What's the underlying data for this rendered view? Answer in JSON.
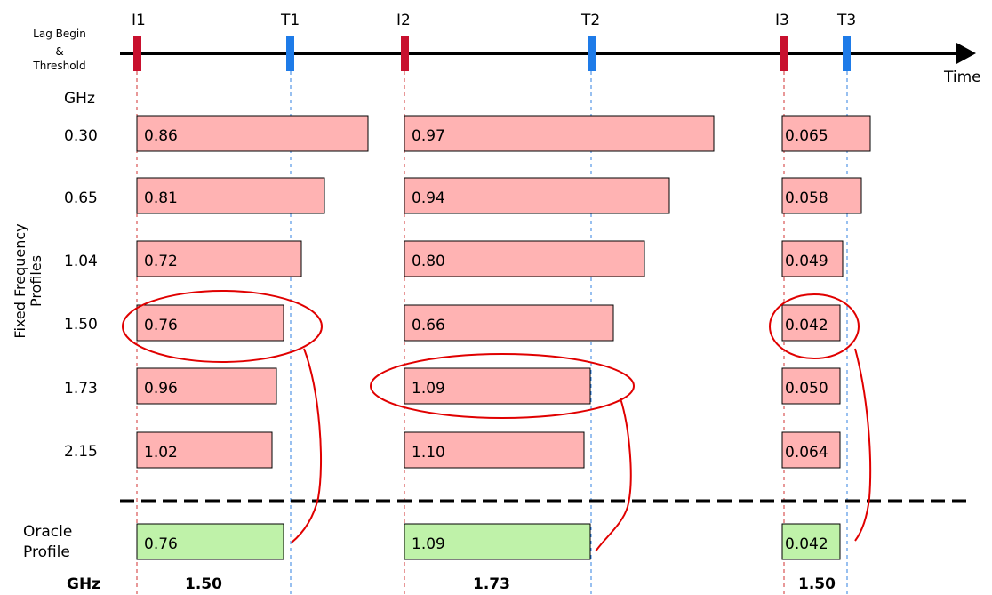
{
  "legend": {
    "line1": "Lag Begin",
    "line2": "&",
    "line3": "Threshold"
  },
  "timeline": {
    "axis_label": "Time",
    "markers": [
      {
        "label": "I1",
        "kind": "lag-begin",
        "color": "#c8102e"
      },
      {
        "label": "T1",
        "kind": "threshold",
        "color": "#1e7be8"
      },
      {
        "label": "I2",
        "kind": "lag-begin",
        "color": "#c8102e"
      },
      {
        "label": "T2",
        "kind": "threshold",
        "color": "#1e7be8"
      },
      {
        "label": "I3",
        "kind": "lag-begin",
        "color": "#c8102e"
      },
      {
        "label": "T3",
        "kind": "threshold",
        "color": "#1e7be8"
      }
    ]
  },
  "fixed": {
    "y_title_line1": "Fixed Frequency",
    "y_title_line2": "Profiles",
    "unit_header": "GHz",
    "rows": [
      {
        "freq": "0.30",
        "values": [
          "0.86",
          "0.97",
          "0.065"
        ]
      },
      {
        "freq": "0.65",
        "values": [
          "0.81",
          "0.94",
          "0.058"
        ]
      },
      {
        "freq": "1.04",
        "values": [
          "0.72",
          "0.80",
          "0.049"
        ]
      },
      {
        "freq": "1.50",
        "values": [
          "0.76",
          "0.66",
          "0.042"
        ]
      },
      {
        "freq": "1.73",
        "values": [
          "0.96",
          "1.09",
          "0.050"
        ]
      },
      {
        "freq": "2.15",
        "values": [
          "1.02",
          "1.10",
          "0.064"
        ]
      }
    ]
  },
  "oracle": {
    "label_line1": "Oracle",
    "label_line2": "Profile",
    "values": [
      "0.76",
      "1.09",
      "0.042"
    ],
    "freq_header": "GHz",
    "freqs": [
      "1.50",
      "1.73",
      "1.50"
    ]
  },
  "colors": {
    "fixed_bar": "#ffb3b3",
    "oracle_bar": "#bff2a9",
    "annotation": "#e00000"
  }
}
